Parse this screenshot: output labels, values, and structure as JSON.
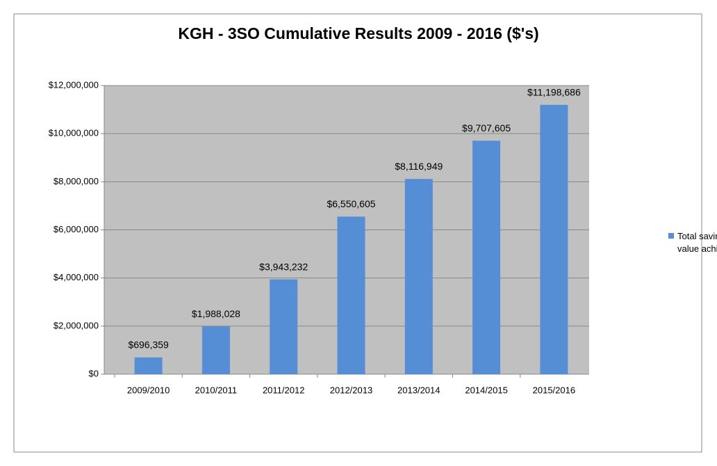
{
  "chart_data": {
    "type": "bar",
    "title": "KGH - 3SO Cumulative Results 2009 - 2016 ($'s)",
    "categories": [
      "2009/2010",
      "2010/2011",
      "2011/2012",
      "2012/2013",
      "2013/2014",
      "2014/2015",
      "2015/2016"
    ],
    "series": [
      {
        "name": "Total savings & value achieved",
        "color": "#558ed5",
        "values": [
          696359,
          1988028,
          3943232,
          6550605,
          8116949,
          9707605,
          11198686
        ],
        "value_labels": [
          "$696,359",
          "$1,988,028",
          "$3,943,232",
          "$6,550,605",
          "$8,116,949",
          "$9,707,605",
          "$11,198,686"
        ]
      }
    ],
    "ylim": [
      0,
      12000000
    ],
    "yticks": [
      {
        "value": 0,
        "label": "$0"
      },
      {
        "value": 2000000,
        "label": "$2,000,000"
      },
      {
        "value": 4000000,
        "label": "$4,000,000"
      },
      {
        "value": 6000000,
        "label": "$6,000,000"
      },
      {
        "value": 8000000,
        "label": "$8,000,000"
      },
      {
        "value": 10000000,
        "label": "$10,000,000"
      },
      {
        "value": 12000000,
        "label": "$12,000,000"
      }
    ],
    "grid": true,
    "legend": "right"
  }
}
